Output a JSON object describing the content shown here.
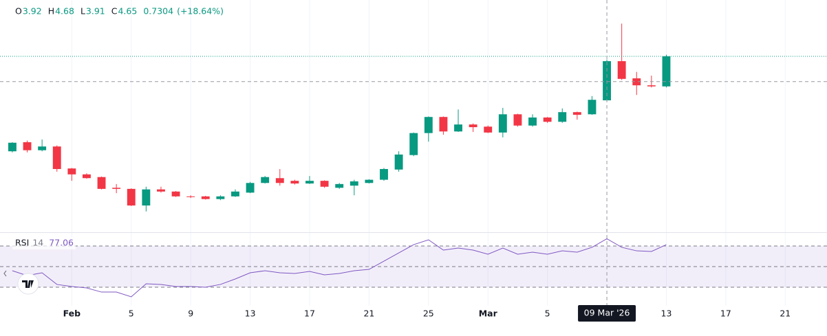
{
  "chart_data": {
    "type": "candlestick",
    "header_labels": [
      "O",
      "H",
      "L",
      "C"
    ],
    "change": "0.7304",
    "change_pct": "(+18.64%)",
    "open": [
      2.97,
      3.14,
      2.99,
      3.06,
      2.65,
      2.54,
      2.49,
      2.29,
      2.27,
      1.96,
      2.26,
      2.22,
      2.13,
      2.13,
      2.08,
      2.13,
      2.2,
      2.38,
      2.47,
      2.42,
      2.37,
      2.42,
      2.29,
      2.33,
      2.38,
      2.44,
      2.63,
      2.9,
      3.31,
      3.61,
      3.34,
      3.47,
      3.43,
      3.32,
      3.66,
      3.45,
      3.6,
      3.52,
      3.7,
      3.66,
      3.92,
      4.65,
      4.33,
      4.2,
      4.18
    ],
    "high": [
      3.14,
      3.17,
      3.19,
      3.08,
      2.66,
      2.56,
      2.5,
      2.36,
      2.28,
      2.31,
      2.31,
      2.23,
      2.15,
      2.14,
      2.15,
      2.26,
      2.4,
      2.51,
      2.64,
      2.44,
      2.51,
      2.43,
      2.38,
      2.44,
      2.45,
      2.66,
      2.97,
      3.32,
      3.62,
      3.62,
      3.75,
      3.49,
      3.45,
      3.78,
      3.67,
      3.66,
      3.61,
      3.77,
      3.71,
      4.0,
      4.68,
      5.35,
      4.45,
      4.38,
      4.77
    ],
    "low": [
      2.95,
      2.95,
      2.97,
      2.59,
      2.42,
      2.46,
      2.26,
      2.19,
      1.95,
      1.85,
      2.2,
      2.12,
      2.1,
      2.07,
      2.06,
      2.12,
      2.19,
      2.37,
      2.33,
      2.35,
      2.36,
      2.29,
      2.27,
      2.15,
      2.37,
      2.42,
      2.59,
      2.88,
      3.15,
      3.28,
      3.33,
      3.33,
      3.31,
      3.23,
      3.43,
      3.43,
      3.5,
      3.5,
      3.56,
      3.65,
      3.91,
      4.3,
      4.02,
      4.16,
      4.16
    ],
    "close": [
      3.13,
      2.99,
      3.06,
      2.64,
      2.54,
      2.47,
      2.27,
      2.27,
      1.96,
      2.26,
      2.22,
      2.13,
      2.12,
      2.08,
      2.13,
      2.22,
      2.38,
      2.49,
      2.38,
      2.37,
      2.42,
      2.31,
      2.36,
      2.41,
      2.44,
      2.64,
      2.91,
      3.31,
      3.61,
      3.34,
      3.47,
      3.42,
      3.32,
      3.66,
      3.45,
      3.6,
      3.52,
      3.7,
      3.65,
      3.93,
      4.65,
      4.32,
      4.2,
      4.18,
      4.74
    ],
    "up_color": "#089981",
    "down_color": "#f23645",
    "ylim": [
      1.5,
      5.79
    ],
    "xlim": [
      -0.83,
      54.81
    ],
    "xticks": [
      {
        "value": 4,
        "label": "Feb"
      },
      {
        "value": 8,
        "label": "5"
      },
      {
        "value": 12,
        "label": "9"
      },
      {
        "value": 16,
        "label": "13"
      },
      {
        "value": 20,
        "label": "17"
      },
      {
        "value": 24,
        "label": "21"
      },
      {
        "value": 28,
        "label": "25"
      },
      {
        "value": 32,
        "label": "Mar"
      },
      {
        "value": 36,
        "label": "5"
      },
      {
        "value": 44,
        "label": "13"
      },
      {
        "value": 48,
        "label": "17"
      },
      {
        "value": 52,
        "label": "21"
      }
    ],
    "crosshair": {
      "x": 40,
      "y": 4.27,
      "label": "09 Mar '26"
    },
    "rsi": {
      "name": "RSI",
      "length": 14,
      "color": "#7e57c2",
      "ylim": [
        12,
        82
      ],
      "levels": [
        70,
        50,
        30
      ],
      "values": [
        46.0,
        41.3,
        44.0,
        32.7,
        30.7,
        29.3,
        25.3,
        25.3,
        20.7,
        33.3,
        32.7,
        30.7,
        30.7,
        30.0,
        32.7,
        38.0,
        44.0,
        46.0,
        44.0,
        43.3,
        45.3,
        42.0,
        43.3,
        46.0,
        47.3,
        55.3,
        63.3,
        71.3,
        76.0,
        66.0,
        68.0,
        66.0,
        62.0,
        68.0,
        62.0,
        64.0,
        62.0,
        65.3,
        64.0,
        68.7,
        77.06,
        68.7,
        65.3,
        64.7,
        71.3
      ]
    }
  }
}
